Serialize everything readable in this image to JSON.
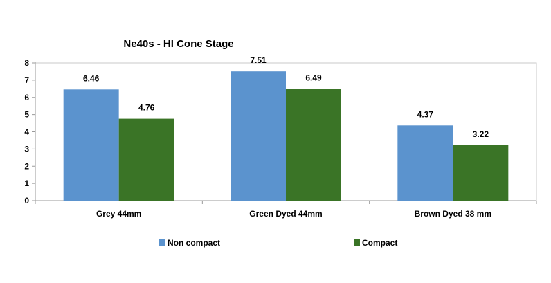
{
  "chart_data": {
    "type": "bar",
    "title": "Ne40s - HI Cone Stage",
    "xlabel": "",
    "ylabel": "",
    "ylim": [
      0,
      8
    ],
    "yticks": [
      0,
      1,
      2,
      3,
      4,
      5,
      6,
      7,
      8
    ],
    "grid": false,
    "legend_position": "bottom",
    "categories": [
      "Grey 44mm",
      "Green Dyed 44mm",
      "Brown Dyed 38 mm"
    ],
    "series": [
      {
        "name": "Non compact",
        "color": "#5B93CE",
        "values": [
          6.46,
          7.51,
          4.37
        ]
      },
      {
        "name": "Compact",
        "color": "#3A7426",
        "values": [
          4.76,
          6.49,
          3.22
        ]
      }
    ]
  }
}
